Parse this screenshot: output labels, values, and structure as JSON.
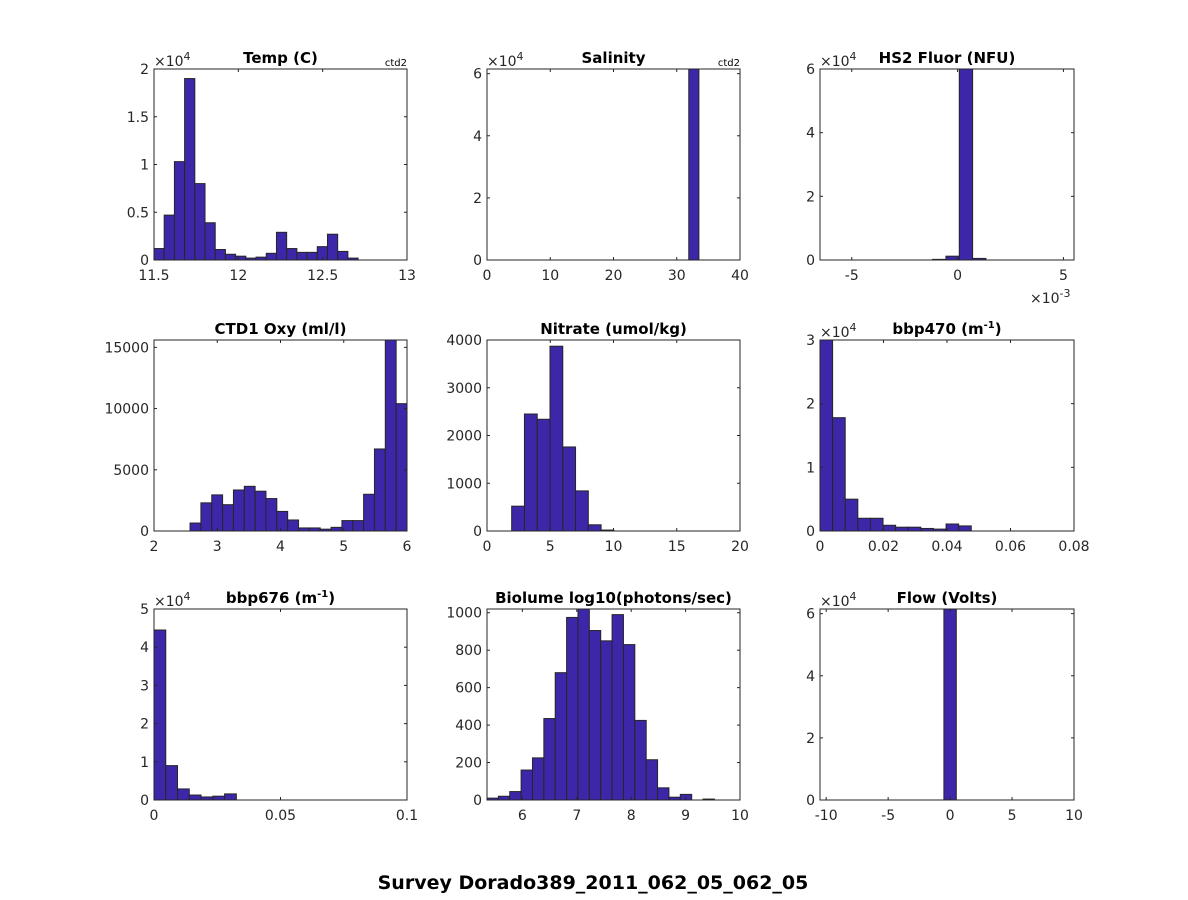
{
  "figure": {
    "suptitle": "Survey Dorado389_2011_062_05_062_05",
    "bar_color": "#3d26a8",
    "edge_color": "#262626"
  },
  "chart_data": [
    {
      "type": "bar",
      "title": "Temp (C)",
      "title_sup": "",
      "title_suffix": "",
      "note": "ctd2",
      "xlim": [
        11.5,
        13
      ],
      "ylim": [
        0,
        20000
      ],
      "xticks": [
        11.5,
        12,
        12.5,
        13
      ],
      "xtick_labels": [
        "11.5",
        "12",
        "12.5",
        "13"
      ],
      "yticks": [
        0,
        5000,
        10000,
        15000,
        20000
      ],
      "ytick_labels": [
        "0",
        "0.5",
        "1",
        "1.5",
        "2"
      ],
      "y_multiplier": "×10",
      "y_multiplier_exp": "4",
      "x_multiplier": "",
      "x_multiplier_exp": "",
      "bin_start": 11.5,
      "bin_width": 0.0605,
      "values": [
        1200,
        4700,
        10300,
        19000,
        8000,
        3900,
        1100,
        600,
        400,
        200,
        300,
        700,
        2900,
        1200,
        800,
        800,
        1400,
        2700,
        900,
        200
      ]
    },
    {
      "type": "bar",
      "title": "Salinity",
      "title_sup": "",
      "title_suffix": "",
      "note": "ctd2",
      "xlim": [
        0,
        40
      ],
      "ylim": [
        0,
        61500
      ],
      "xticks": [
        0,
        10,
        20,
        30,
        40
      ],
      "xtick_labels": [
        "0",
        "10",
        "20",
        "30",
        "40"
      ],
      "yticks": [
        0,
        20000,
        40000,
        60000
      ],
      "ytick_labels": [
        "0",
        "2",
        "4",
        "6"
      ],
      "y_multiplier": "×10",
      "y_multiplier_exp": "4",
      "x_multiplier": "",
      "x_multiplier_exp": "",
      "bin_start": 31.9,
      "bin_width": 1.6,
      "values": [
        61500
      ]
    },
    {
      "type": "bar",
      "title": "HS2 Fluor (NFU)",
      "title_sup": "",
      "title_suffix": "",
      "note": "",
      "xlim": [
        -0.0065,
        0.0055
      ],
      "ylim": [
        0,
        60000
      ],
      "xticks": [
        -0.005,
        0,
        0.005
      ],
      "xtick_labels": [
        "-5",
        "0",
        "5"
      ],
      "yticks": [
        0,
        20000,
        40000,
        60000
      ],
      "ytick_labels": [
        "0",
        "2",
        "4",
        "6"
      ],
      "y_multiplier": "×10",
      "y_multiplier_exp": "4",
      "x_multiplier": "×10",
      "x_multiplier_exp": "-3",
      "bin_start": -0.00118,
      "bin_width": 0.00063,
      "values": [
        200,
        1200,
        60000,
        500
      ]
    },
    {
      "type": "bar",
      "title": "CTD1 Oxy (ml/l)",
      "title_sup": "",
      "title_suffix": "",
      "note": "",
      "xlim": [
        2,
        6
      ],
      "ylim": [
        0,
        15600
      ],
      "xticks": [
        2,
        3,
        4,
        5,
        6
      ],
      "xtick_labels": [
        "2",
        "3",
        "4",
        "5",
        "6"
      ],
      "yticks": [
        0,
        5000,
        10000,
        15000
      ],
      "ytick_labels": [
        "0",
        "5000",
        "10000",
        "15000"
      ],
      "y_multiplier": "",
      "y_multiplier_exp": "",
      "x_multiplier": "",
      "x_multiplier_exp": "",
      "bin_start": 2.57,
      "bin_width": 0.1715,
      "values": [
        650,
        2300,
        2950,
        2150,
        3350,
        3650,
        3250,
        2650,
        1600,
        900,
        250,
        250,
        150,
        300,
        850,
        850,
        3000,
        6700,
        15600,
        10400
      ]
    },
    {
      "type": "bar",
      "title": "Nitrate (umol/kg)",
      "title_sup": "",
      "title_suffix": "",
      "note": "",
      "xlim": [
        0,
        20
      ],
      "ylim": [
        0,
        4000
      ],
      "xticks": [
        0,
        5,
        10,
        15,
        20
      ],
      "xtick_labels": [
        "0",
        "5",
        "10",
        "15",
        "20"
      ],
      "yticks": [
        0,
        1000,
        2000,
        3000,
        4000
      ],
      "ytick_labels": [
        "0",
        "1000",
        "2000",
        "3000",
        "4000"
      ],
      "y_multiplier": "",
      "y_multiplier_exp": "",
      "x_multiplier": "",
      "x_multiplier_exp": "",
      "bin_start": 1.95,
      "bin_width": 1.01,
      "values": [
        520,
        2450,
        2340,
        3870,
        1760,
        840,
        130,
        20
      ]
    },
    {
      "type": "bar",
      "title": "bbp470 (m",
      "title_sup": "-1",
      "title_suffix": ")",
      "note": "",
      "xlim": [
        0,
        0.08
      ],
      "ylim": [
        0,
        30000
      ],
      "xticks": [
        0,
        0.02,
        0.04,
        0.06,
        0.08
      ],
      "xtick_labels": [
        "0",
        "0.02",
        "0.04",
        "0.06",
        "0.08"
      ],
      "yticks": [
        0,
        10000,
        20000,
        30000
      ],
      "ytick_labels": [
        "0",
        "1",
        "2",
        "3"
      ],
      "y_multiplier": "×10",
      "y_multiplier_exp": "4",
      "x_multiplier": "",
      "x_multiplier_exp": "",
      "bin_start": 0,
      "bin_width": 0.00397,
      "values": [
        30000,
        17800,
        5000,
        2000,
        2000,
        900,
        600,
        600,
        400,
        300,
        1100,
        800
      ]
    },
    {
      "type": "bar",
      "title": "bbp676 (m",
      "title_sup": "-1",
      "title_suffix": ")",
      "note": "",
      "xlim": [
        0,
        0.1
      ],
      "ylim": [
        0,
        50000
      ],
      "xticks": [
        0,
        0.05,
        0.1
      ],
      "xtick_labels": [
        "0",
        "0.05",
        "0.1"
      ],
      "yticks": [
        0,
        10000,
        20000,
        30000,
        40000,
        50000
      ],
      "ytick_labels": [
        "0",
        "1",
        "2",
        "3",
        "4",
        "5"
      ],
      "y_multiplier": "×10",
      "y_multiplier_exp": "4",
      "x_multiplier": "",
      "x_multiplier_exp": "",
      "bin_start": 0,
      "bin_width": 0.00465,
      "values": [
        44500,
        9000,
        2900,
        1300,
        800,
        1000,
        1600
      ]
    },
    {
      "type": "bar",
      "title": "Biolume log10(photons/sec)",
      "title_sup": "",
      "title_suffix": "",
      "note": "",
      "xlim": [
        5.35,
        10
      ],
      "ylim": [
        0,
        1020
      ],
      "xticks": [
        6,
        7,
        8,
        9,
        10
      ],
      "xtick_labels": [
        "6",
        "7",
        "8",
        "9",
        "10"
      ],
      "yticks": [
        0,
        200,
        400,
        600,
        800,
        1000
      ],
      "ytick_labels": [
        "0",
        "200",
        "400",
        "600",
        "800",
        "1000"
      ],
      "y_multiplier": "",
      "y_multiplier_exp": "",
      "x_multiplier": "",
      "x_multiplier_exp": "",
      "bin_start": 5.35,
      "bin_width": 0.209,
      "values": [
        10,
        20,
        45,
        160,
        225,
        435,
        680,
        975,
        1020,
        905,
        850,
        990,
        830,
        425,
        215,
        65,
        15,
        30,
        0,
        5,
        0,
        0
      ]
    },
    {
      "type": "bar",
      "title": "Flow (Volts)",
      "title_sup": "",
      "title_suffix": "",
      "note": "",
      "xlim": [
        -10.5,
        10
      ],
      "ylim": [
        0,
        61500
      ],
      "xticks": [
        -10,
        -5,
        0,
        5,
        10
      ],
      "xtick_labels": [
        "-10",
        "-5",
        "0",
        "5",
        "10"
      ],
      "yticks": [
        0,
        20000,
        40000,
        60000
      ],
      "ytick_labels": [
        "0",
        "2",
        "4",
        "6"
      ],
      "y_multiplier": "×10",
      "y_multiplier_exp": "4",
      "x_multiplier": "",
      "x_multiplier_exp": "",
      "bin_start": -0.5,
      "bin_width": 1.0,
      "values": [
        61500
      ]
    }
  ]
}
